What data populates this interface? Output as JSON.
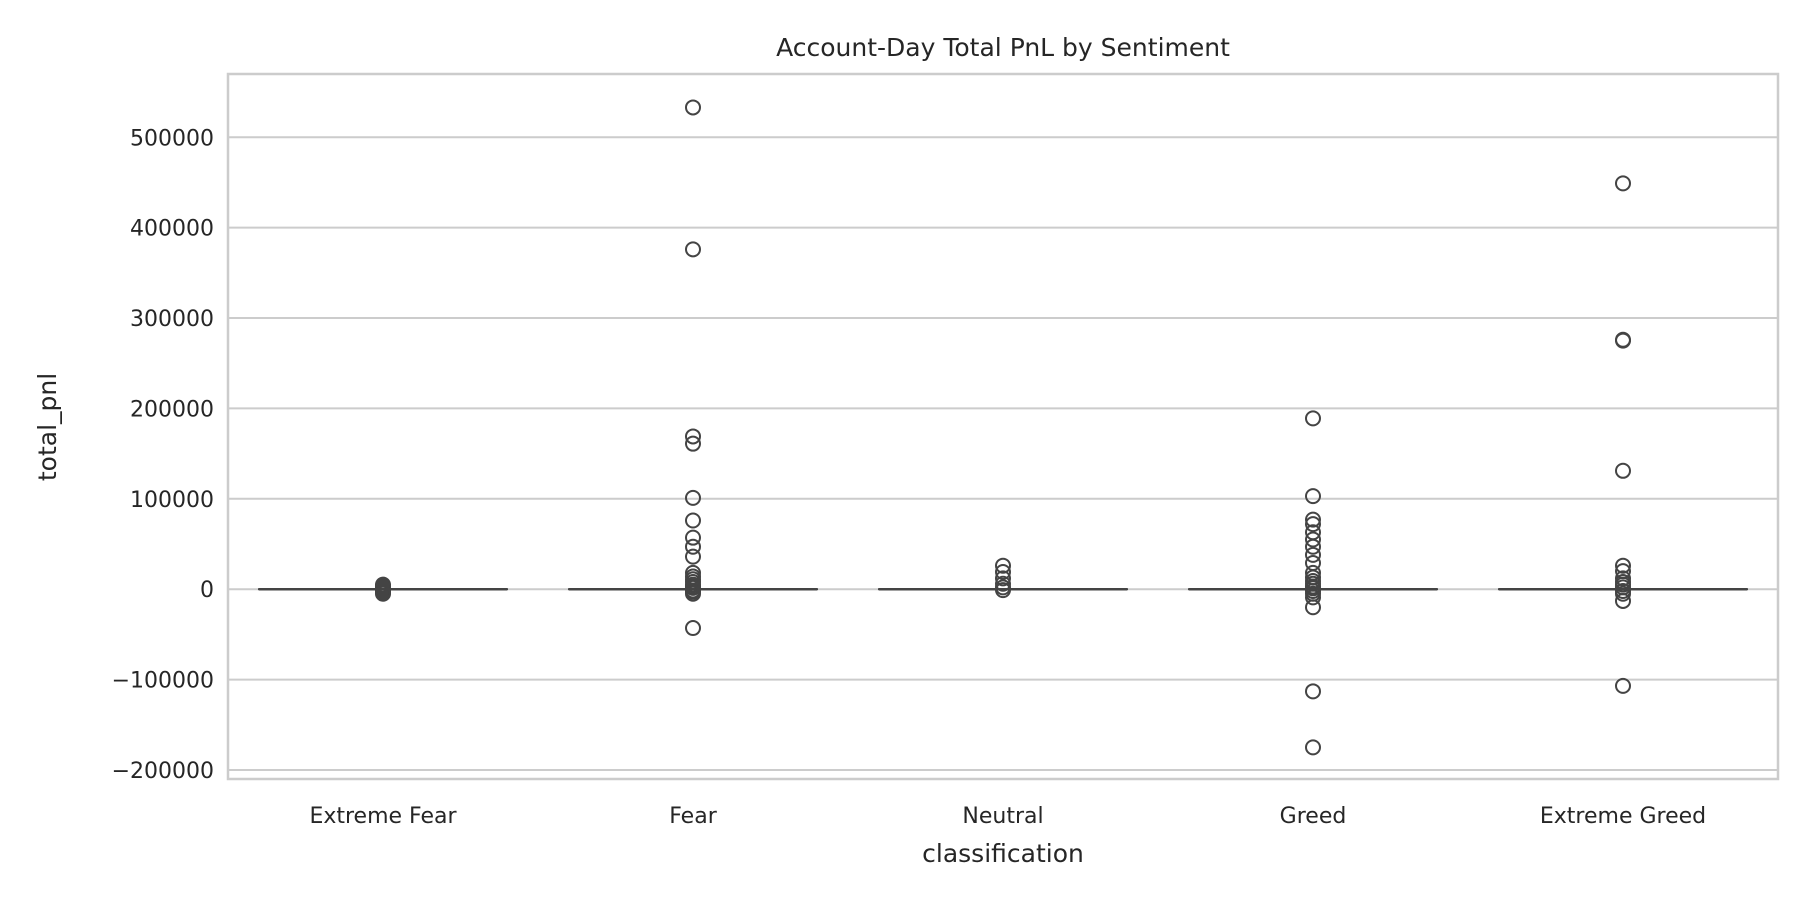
{
  "chart_data": {
    "type": "box",
    "title": "Account-Day Total PnL by Sentiment",
    "xlabel": "classification",
    "ylabel": "total_pnl",
    "ylim": [
      -210000,
      570000
    ],
    "yticks": [
      -200000,
      -100000,
      0,
      100000,
      200000,
      300000,
      400000,
      500000
    ],
    "ytick_labels": [
      "−200000",
      "−100000",
      "0",
      "100000",
      "200000",
      "300000",
      "400000",
      "500000"
    ],
    "grid": true,
    "colors": {
      "box": "#444444",
      "grid": "#cccccc",
      "frame": "#cccccc",
      "text": "#262626"
    },
    "categories": [
      "Extreme Fear",
      "Fear",
      "Neutral",
      "Greed",
      "Extreme Greed"
    ],
    "boxes": [
      {
        "category": "Extreme Fear",
        "q1": 0,
        "median": 0,
        "q3": 0,
        "whisker_low": 0,
        "whisker_high": 0,
        "outliers": [
          5000,
          3500,
          2000,
          800,
          -500,
          -2000,
          -3500,
          -5000
        ]
      },
      {
        "category": "Fear",
        "q1": 0,
        "median": 0,
        "q3": 0,
        "whisker_low": 0,
        "whisker_high": 0,
        "outliers": [
          533000,
          376000,
          169000,
          161000,
          101000,
          76000,
          57000,
          47000,
          36000,
          18000,
          14000,
          11000,
          8000,
          5000,
          3000,
          1500,
          -1500,
          -3000,
          -5000,
          -43000
        ]
      },
      {
        "category": "Neutral",
        "q1": 0,
        "median": 0,
        "q3": 0,
        "whisker_low": 0,
        "whisker_high": 0,
        "outliers": [
          26000,
          19000,
          12000,
          6000,
          2000,
          -1000
        ]
      },
      {
        "category": "Greed",
        "q1": 0,
        "median": 0,
        "q3": 0,
        "whisker_low": 0,
        "whisker_high": 0,
        "outliers": [
          189000,
          103000,
          77000,
          72000,
          63000,
          55000,
          47000,
          38000,
          29000,
          18000,
          13000,
          9000,
          6000,
          3000,
          1000,
          -2000,
          -5000,
          -9000,
          -20000,
          -113000,
          -175000
        ]
      },
      {
        "category": "Extreme Greed",
        "q1": 0,
        "median": 0,
        "q3": 0,
        "whisker_low": 0,
        "whisker_high": 0,
        "outliers": [
          449000,
          276000,
          275000,
          131000,
          26000,
          20000,
          12000,
          8000,
          5000,
          2000,
          -2000,
          -5000,
          -13000,
          -107000
        ]
      }
    ]
  }
}
